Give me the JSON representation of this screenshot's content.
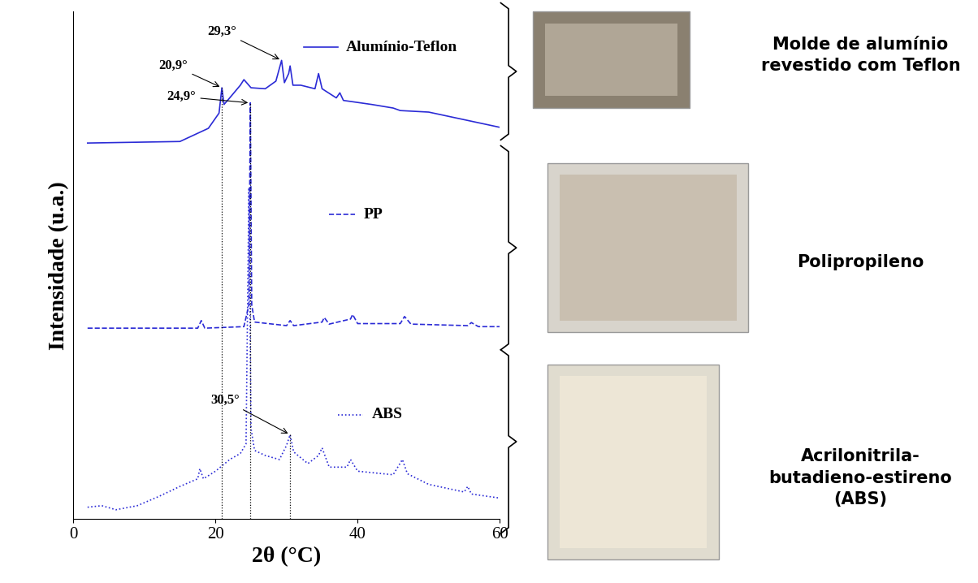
{
  "chart_data": {
    "type": "line",
    "x_label": "2θ (°C)",
    "y_label": "Intensidade (u.a.)",
    "xlim": [
      0,
      60
    ],
    "ylim": [
      0,
      100
    ],
    "xticks": [
      0,
      20,
      40,
      60
    ],
    "tick_labels": "x",
    "grid": false,
    "series": [
      {
        "name": "Alumínio-Teflon",
        "color": "#2b2bd6",
        "line_style": "solid",
        "x": [
          2,
          15,
          19,
          20.5,
          20.9,
          21.2,
          22,
          23.5,
          24,
          25,
          27,
          28.5,
          29.3,
          29.7,
          30.3,
          30.5,
          30.9,
          32,
          34,
          34.5,
          35,
          37,
          37.5,
          38,
          42,
          45,
          46,
          50,
          55,
          60
        ],
        "values": [
          74.1,
          74.4,
          77,
          80,
          85,
          81.7,
          83,
          85.5,
          86.6,
          85,
          84.8,
          86.3,
          90.4,
          86,
          87.8,
          89.3,
          85.5,
          85.5,
          84.8,
          87.8,
          84.8,
          83,
          84,
          82.5,
          81.7,
          81,
          80.5,
          80.2,
          78.7,
          77.2
        ]
      },
      {
        "name": "PP",
        "color": "#2b2bd6",
        "line_style": "dashed",
        "x": [
          2,
          17.5,
          18,
          18.5,
          24,
          24.7,
          24.9,
          25.1,
          25.5,
          30,
          30.5,
          31,
          35,
          35.3,
          36,
          39,
          39.3,
          40,
          46,
          46.6,
          47.5,
          55.5,
          56,
          57,
          60
        ],
        "values": [
          37.6,
          37.6,
          39.1,
          37.6,
          37.9,
          42.2,
          82,
          42.2,
          38.8,
          38.1,
          39.1,
          38.1,
          38.8,
          39.7,
          38.4,
          39.4,
          40.3,
          38.5,
          38.5,
          39.9,
          38.4,
          38.1,
          38.7,
          37.9,
          37.9
        ]
      },
      {
        "name": "ABS",
        "color": "#2b2bd6",
        "line_style": "dotted",
        "x": [
          2,
          4,
          6,
          9,
          12,
          15,
          17.5,
          17.8,
          18.3,
          20,
          22,
          23.5,
          24.3,
          24.7,
          25,
          25.5,
          27,
          29,
          30,
          30.5,
          31,
          33,
          34.5,
          35,
          36,
          38.5,
          39,
          40,
          45,
          46.3,
          47,
          50,
          55,
          55.5,
          56,
          60
        ],
        "values": [
          2.3,
          2.6,
          1.8,
          2.6,
          4.4,
          6.4,
          7.9,
          9.9,
          7.9,
          9.4,
          11.7,
          12.9,
          14.8,
          65.3,
          17.8,
          13.5,
          12.5,
          11.7,
          14.5,
          16.6,
          13.2,
          10.9,
          12.5,
          14,
          10.2,
          10.2,
          11.7,
          9.4,
          8.7,
          11.7,
          8.9,
          6.8,
          5.3,
          6.4,
          4.9,
          4.1
        ]
      }
    ],
    "annotations": [
      {
        "text": "20,9°",
        "x": 20.9,
        "y": 85,
        "line_style": "dotted"
      },
      {
        "text": "29,3°",
        "x": 29.3,
        "y": 90.4
      },
      {
        "text": "24,9°",
        "x": 24.9,
        "y": 82,
        "line_style": "dotted"
      },
      {
        "text": "30,5°",
        "x": 30.5,
        "y": 16.6,
        "line_style": "dotted"
      }
    ],
    "panels": [
      {
        "label": "Molde de alumínio\nrevestido com Teflon"
      },
      {
        "label": "Polipropileno"
      },
      {
        "label": "Acrilonitrila-\nbutadieno-estireno\n(ABS)"
      }
    ]
  }
}
